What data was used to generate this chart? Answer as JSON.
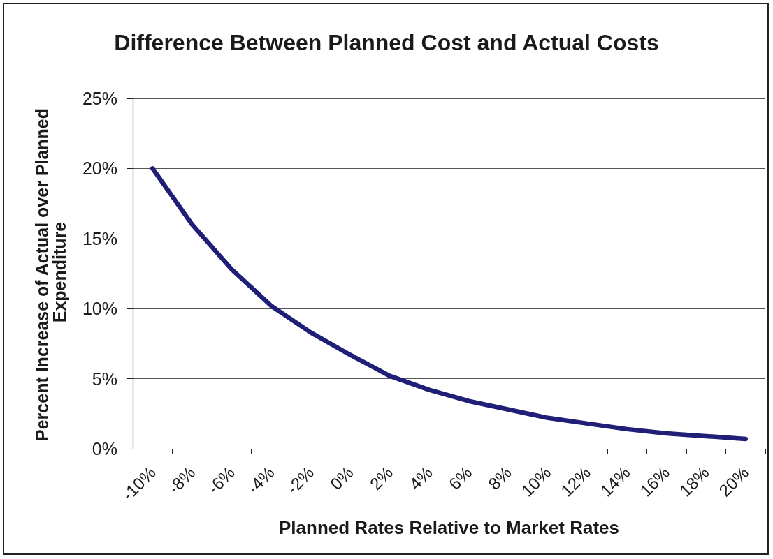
{
  "chart_data": {
    "type": "line",
    "title": "Difference Between Planned Cost and Actual Costs",
    "xlabel": "Planned Rates Relative to Market Rates",
    "ylabel": "Percent Increase of Actual over Planned Expenditure",
    "categories": [
      "-10%",
      "-8%",
      "-6%",
      "-4%",
      "-2%",
      "0%",
      "2%",
      "4%",
      "6%",
      "8%",
      "10%",
      "12%",
      "14%",
      "16%",
      "18%",
      "20%"
    ],
    "values": [
      20,
      16,
      12.8,
      10.2,
      8.3,
      6.7,
      5.2,
      4.2,
      3.4,
      2.8,
      2.2,
      1.8,
      1.4,
      1.1,
      0.9,
      0.7
    ],
    "color": "#1f1f78",
    "ylim": [
      0,
      25
    ],
    "yticks": [
      {
        "value": 0,
        "label": "0%"
      },
      {
        "value": 5,
        "label": "5%"
      },
      {
        "value": 10,
        "label": "10%"
      },
      {
        "value": 15,
        "label": "15%"
      },
      {
        "value": 20,
        "label": "20%"
      },
      {
        "value": 25,
        "label": "25%"
      }
    ],
    "grid": "y",
    "marker": "none",
    "line_style": "solid"
  }
}
